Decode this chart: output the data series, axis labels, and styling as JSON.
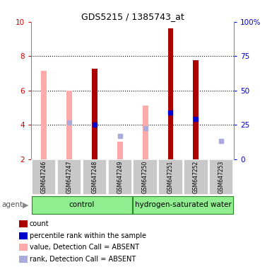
{
  "title": "GDS5215 / 1385743_at",
  "samples": [
    "GSM647246",
    "GSM647247",
    "GSM647248",
    "GSM647249",
    "GSM647250",
    "GSM647251",
    "GSM647252",
    "GSM647253"
  ],
  "ylim_left": [
    2,
    10
  ],
  "ylim_right": [
    0,
    100
  ],
  "yticks_left": [
    2,
    4,
    6,
    8,
    10
  ],
  "yticks_right": [
    0,
    25,
    50,
    75,
    100
  ],
  "ytick_labels_right": [
    "0",
    "25",
    "50",
    "75",
    "100%"
  ],
  "red_bars": {
    "values": [
      null,
      null,
      7.25,
      null,
      null,
      9.6,
      7.75,
      null
    ],
    "color": "#AA0000"
  },
  "pink_bars": {
    "values": [
      7.15,
      6.0,
      null,
      3.0,
      5.1,
      null,
      null,
      null
    ],
    "color": "#FFAAAA"
  },
  "blue_squares": {
    "values": [
      null,
      null,
      4.0,
      null,
      null,
      4.7,
      4.35,
      null
    ],
    "color": "#0000CC",
    "size": 18
  },
  "light_blue_squares": {
    "values": [
      null,
      4.15,
      null,
      3.35,
      3.82,
      null,
      null,
      3.05
    ],
    "color": "#AAAADD",
    "size": 18
  },
  "red_tick_color": "#CC0000",
  "blue_tick_color": "#0000CC",
  "legend_items": [
    {
      "label": "count",
      "color": "#AA0000"
    },
    {
      "label": "percentile rank within the sample",
      "color": "#0000CC"
    },
    {
      "label": "value, Detection Call = ABSENT",
      "color": "#FFAAAA"
    },
    {
      "label": "rank, Detection Call = ABSENT",
      "color": "#AAAADD"
    }
  ],
  "agent_label": "agent",
  "group_bar_color": "#90EE90",
  "group_border_color": "#228B22",
  "sample_box_color": "#C8C8C8",
  "control_label": "control",
  "hw_label": "hydrogen-saturated water"
}
